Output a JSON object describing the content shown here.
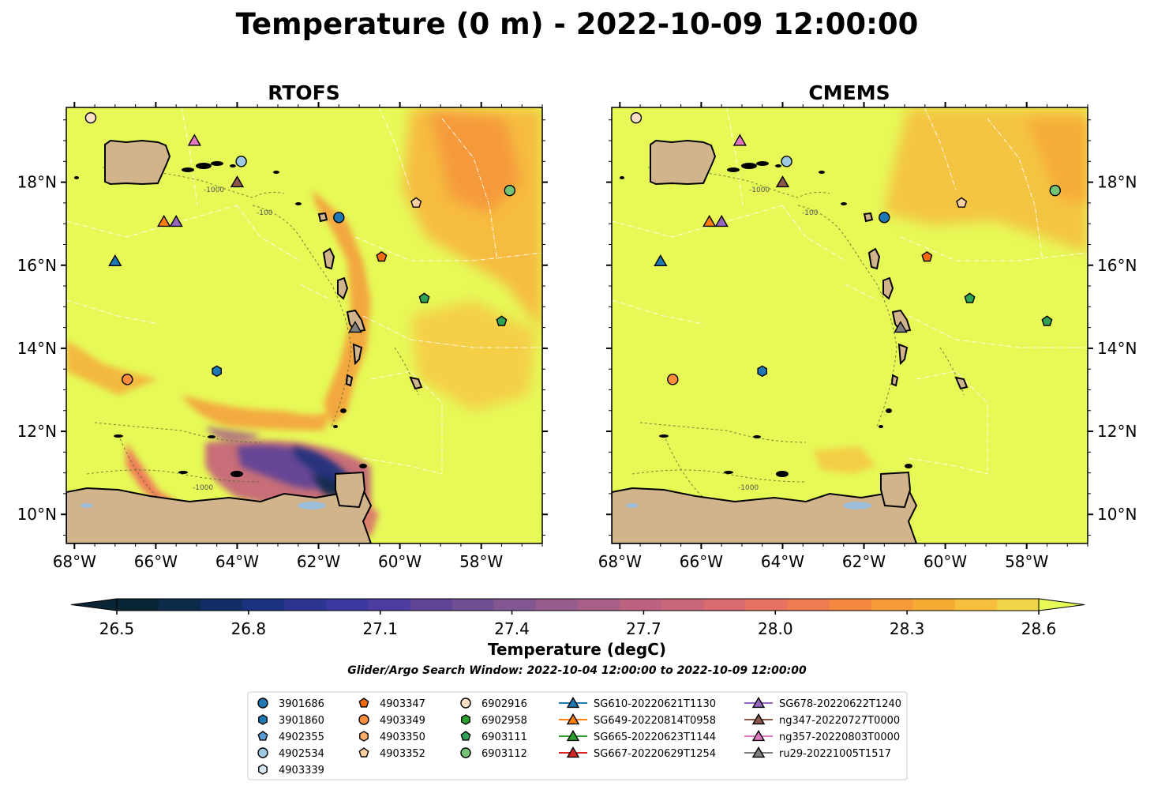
{
  "title": "Temperature (0 m) - 2022-10-09 12:00:00",
  "colors": {
    "land": "#d2b48c",
    "sea_base": "#e6f957",
    "lake": "#9dbdd9",
    "eez_line": "#ffffff",
    "bathy_line": "#5a6a2a"
  },
  "panels": [
    {
      "id": "rtofs",
      "title": "RTOFS"
    },
    {
      "id": "cmems",
      "title": "CMEMS"
    }
  ],
  "axes": {
    "lon_range": [
      -68.2,
      -56.5
    ],
    "lat_range": [
      9.3,
      19.8
    ],
    "lon_ticks": [
      -68,
      -66,
      -64,
      -62,
      -60,
      -58
    ],
    "lon_tick_labels": [
      "68°W",
      "66°W",
      "64°W",
      "62°W",
      "60°W",
      "58°W"
    ],
    "lat_ticks": [
      10,
      12,
      14,
      16,
      18
    ],
    "lat_tick_labels": [
      "10°N",
      "12°N",
      "14°N",
      "16°N",
      "18°N"
    ]
  },
  "bathymetry_labels": [
    "-1000",
    "-100"
  ],
  "colorbar": {
    "label": "Temperature (degC)",
    "ticks": [
      26.5,
      26.8,
      27.1,
      27.4,
      27.7,
      28.0,
      28.3,
      28.6
    ],
    "tick_labels": [
      "26.5",
      "26.8",
      "27.1",
      "27.4",
      "27.7",
      "28.0",
      "28.3",
      "28.6"
    ],
    "range": [
      26.5,
      28.6
    ],
    "colors": [
      "#0a2535",
      "#0c2a4a",
      "#112e66",
      "#1b3280",
      "#2c3590",
      "#3c38a0",
      "#4d3c9f",
      "#5f4596",
      "#714f94",
      "#825690",
      "#965c8b",
      "#a85f87",
      "#ba6280",
      "#c96679",
      "#d96b70",
      "#e57262",
      "#ef7c50",
      "#f48840",
      "#f79a37",
      "#f8ab33",
      "#f7bf3d",
      "#f1d548",
      "#e6f957"
    ]
  },
  "caption": "Glider/Argo Search Window: 2022-10-04 12:00:00 to 2022-10-09 12:00:00",
  "observations": [
    {
      "id": "3901686",
      "marker": "circle",
      "color": "#1f77b4",
      "lon": -61.5,
      "lat": 17.15
    },
    {
      "id": "3901860",
      "marker": "hexagon",
      "color": "#1f77b4",
      "lon": -64.5,
      "lat": 13.45
    },
    {
      "id": "4902355",
      "marker": "pentagon",
      "color": "#5b9bd5",
      "lon": null,
      "lat": null
    },
    {
      "id": "4902534",
      "marker": "circle",
      "color": "#9ecae1",
      "lon": -63.9,
      "lat": 18.5
    },
    {
      "id": "4903339",
      "marker": "hexagon",
      "color": "#d6e8f5",
      "lon": null,
      "lat": null
    },
    {
      "id": "4903347",
      "marker": "pentagon",
      "color": "#f26a0f",
      "lon": -60.45,
      "lat": 16.2
    },
    {
      "id": "4903349",
      "marker": "circle",
      "color": "#fd8d3c",
      "lon": -66.7,
      "lat": 13.25
    },
    {
      "id": "4903350",
      "marker": "hexagon",
      "color": "#fdae6b",
      "lon": null,
      "lat": null
    },
    {
      "id": "4903352",
      "marker": "pentagon",
      "color": "#fdd0a2",
      "lon": -59.6,
      "lat": 17.5
    },
    {
      "id": "6902916",
      "marker": "circle",
      "color": "#fde0c5",
      "lon": -67.6,
      "lat": 19.55
    },
    {
      "id": "6902958",
      "marker": "hexagon",
      "color": "#2ca02c",
      "lon": null,
      "lat": null
    },
    {
      "id": "6903111",
      "marker": "pentagon",
      "color": "#31a354",
      "lon": -59.4,
      "lat": 15.2
    },
    {
      "id": "6903112",
      "marker": "circle",
      "color": "#74c476",
      "lon": -57.3,
      "lat": 17.8
    },
    {
      "id": "6903111b",
      "marker": "pentagon",
      "color": "#31a354",
      "lon": -57.5,
      "lat": 14.65,
      "legend": false
    }
  ],
  "gliders": [
    {
      "id": "SG610-20220621T1130",
      "color": "#1f77b4",
      "lon": -67.0,
      "lat": 16.1
    },
    {
      "id": "SG649-20220814T0958",
      "color": "#ff7f0e",
      "lon": -65.8,
      "lat": 17.05
    },
    {
      "id": "SG665-20220623T1144",
      "color": "#2ca02c",
      "lon": null,
      "lat": null
    },
    {
      "id": "SG667-20220629T1254",
      "color": "#d62728",
      "lon": null,
      "lat": null
    },
    {
      "id": "SG678-20220622T1240",
      "color": "#9467bd",
      "lon": -65.5,
      "lat": 17.05
    },
    {
      "id": "ng347-20220727T0000",
      "color": "#8c564b",
      "lon": -64.0,
      "lat": 18.0
    },
    {
      "id": "ng357-20220803T0000",
      "color": "#e377c2",
      "lon": -65.05,
      "lat": 19.0
    },
    {
      "id": "ru29-20221005T1517",
      "color": "#7f7f7f",
      "lon": -61.1,
      "lat": 14.5
    }
  ]
}
